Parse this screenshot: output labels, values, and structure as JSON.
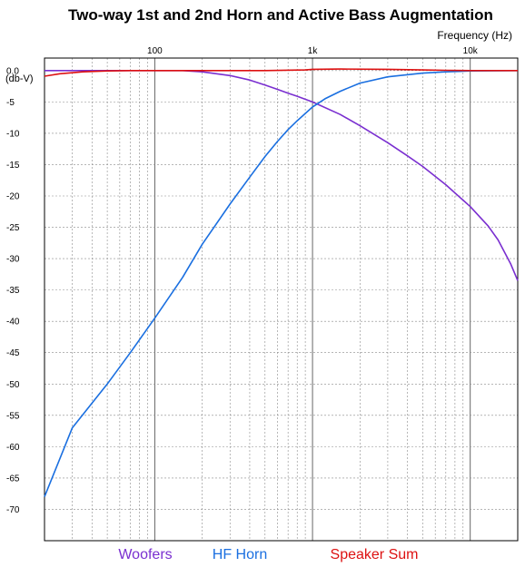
{
  "chart_data": {
    "type": "line",
    "title": "Two-way 1st and 2nd Horn and Active Bass  Augmentation",
    "xlabel": "Frequency  (Hz)",
    "ylabel": "(db-V)",
    "x_scale": "log",
    "xlim": [
      20,
      20000
    ],
    "ylim": [
      -75,
      2
    ],
    "x_tick_labels": [
      {
        "value": 100,
        "label": "100"
      },
      {
        "value": 1000,
        "label": "1k"
      },
      {
        "value": 10000,
        "label": "10k"
      }
    ],
    "y_tick_labels": [
      {
        "value": 0,
        "label": "0.0"
      },
      {
        "value": -5,
        "label": "-5"
      },
      {
        "value": -10,
        "label": "-10"
      },
      {
        "value": -15,
        "label": "-15"
      },
      {
        "value": -20,
        "label": "-20"
      },
      {
        "value": -25,
        "label": "-25"
      },
      {
        "value": -30,
        "label": "-30"
      },
      {
        "value": -35,
        "label": "-35"
      },
      {
        "value": -40,
        "label": "-40"
      },
      {
        "value": -45,
        "label": "-45"
      },
      {
        "value": -50,
        "label": "-50"
      },
      {
        "value": -55,
        "label": "-55"
      },
      {
        "value": -60,
        "label": "-60"
      },
      {
        "value": -65,
        "label": "-65"
      },
      {
        "value": -70,
        "label": "-70"
      }
    ],
    "grid": true,
    "legend_position": "bottom",
    "series": [
      {
        "name": "Woofers",
        "color": "#7a2fd0",
        "points": [
          [
            20,
            0.0
          ],
          [
            100,
            0.0
          ],
          [
            150,
            0.0
          ],
          [
            200,
            -0.2
          ],
          [
            300,
            -0.8
          ],
          [
            400,
            -1.5
          ],
          [
            500,
            -2.3
          ],
          [
            600,
            -3.0
          ],
          [
            700,
            -3.6
          ],
          [
            800,
            -4.1
          ],
          [
            1000,
            -5.0
          ],
          [
            1500,
            -7.0
          ],
          [
            2000,
            -8.8
          ],
          [
            3000,
            -11.5
          ],
          [
            4000,
            -13.6
          ],
          [
            5000,
            -15.3
          ],
          [
            7000,
            -18.2
          ],
          [
            10000,
            -21.7
          ],
          [
            13000,
            -24.8
          ],
          [
            15000,
            -27.0
          ],
          [
            18000,
            -30.8
          ],
          [
            20000,
            -33.5
          ]
        ]
      },
      {
        "name": "HF Horn",
        "color": "#1a6fe0",
        "points": [
          [
            20,
            -68
          ],
          [
            30,
            -57
          ],
          [
            50,
            -50
          ],
          [
            70,
            -45
          ],
          [
            100,
            -39.5
          ],
          [
            150,
            -33
          ],
          [
            200,
            -27.7
          ],
          [
            300,
            -21.3
          ],
          [
            400,
            -17.0
          ],
          [
            500,
            -13.7
          ],
          [
            600,
            -11.3
          ],
          [
            700,
            -9.4
          ],
          [
            800,
            -8.0
          ],
          [
            1000,
            -5.8
          ],
          [
            1200,
            -4.5
          ],
          [
            1500,
            -3.3
          ],
          [
            2000,
            -2.0
          ],
          [
            3000,
            -1.0
          ],
          [
            5000,
            -0.4
          ],
          [
            7000,
            -0.2
          ],
          [
            10000,
            -0.05
          ],
          [
            20000,
            0.0
          ]
        ]
      },
      {
        "name": "Speaker Sum",
        "color": "#dd1111",
        "points": [
          [
            20,
            -0.9
          ],
          [
            25,
            -0.5
          ],
          [
            35,
            -0.2
          ],
          [
            50,
            -0.05
          ],
          [
            70,
            0.0
          ],
          [
            100,
            0.0
          ],
          [
            200,
            0.0
          ],
          [
            500,
            0.0
          ],
          [
            900,
            0.1
          ],
          [
            1000,
            0.2
          ],
          [
            1500,
            0.25
          ],
          [
            3000,
            0.2
          ],
          [
            5000,
            0.1
          ],
          [
            7000,
            0.05
          ],
          [
            10000,
            0.0
          ],
          [
            20000,
            0.0
          ]
        ]
      }
    ]
  }
}
